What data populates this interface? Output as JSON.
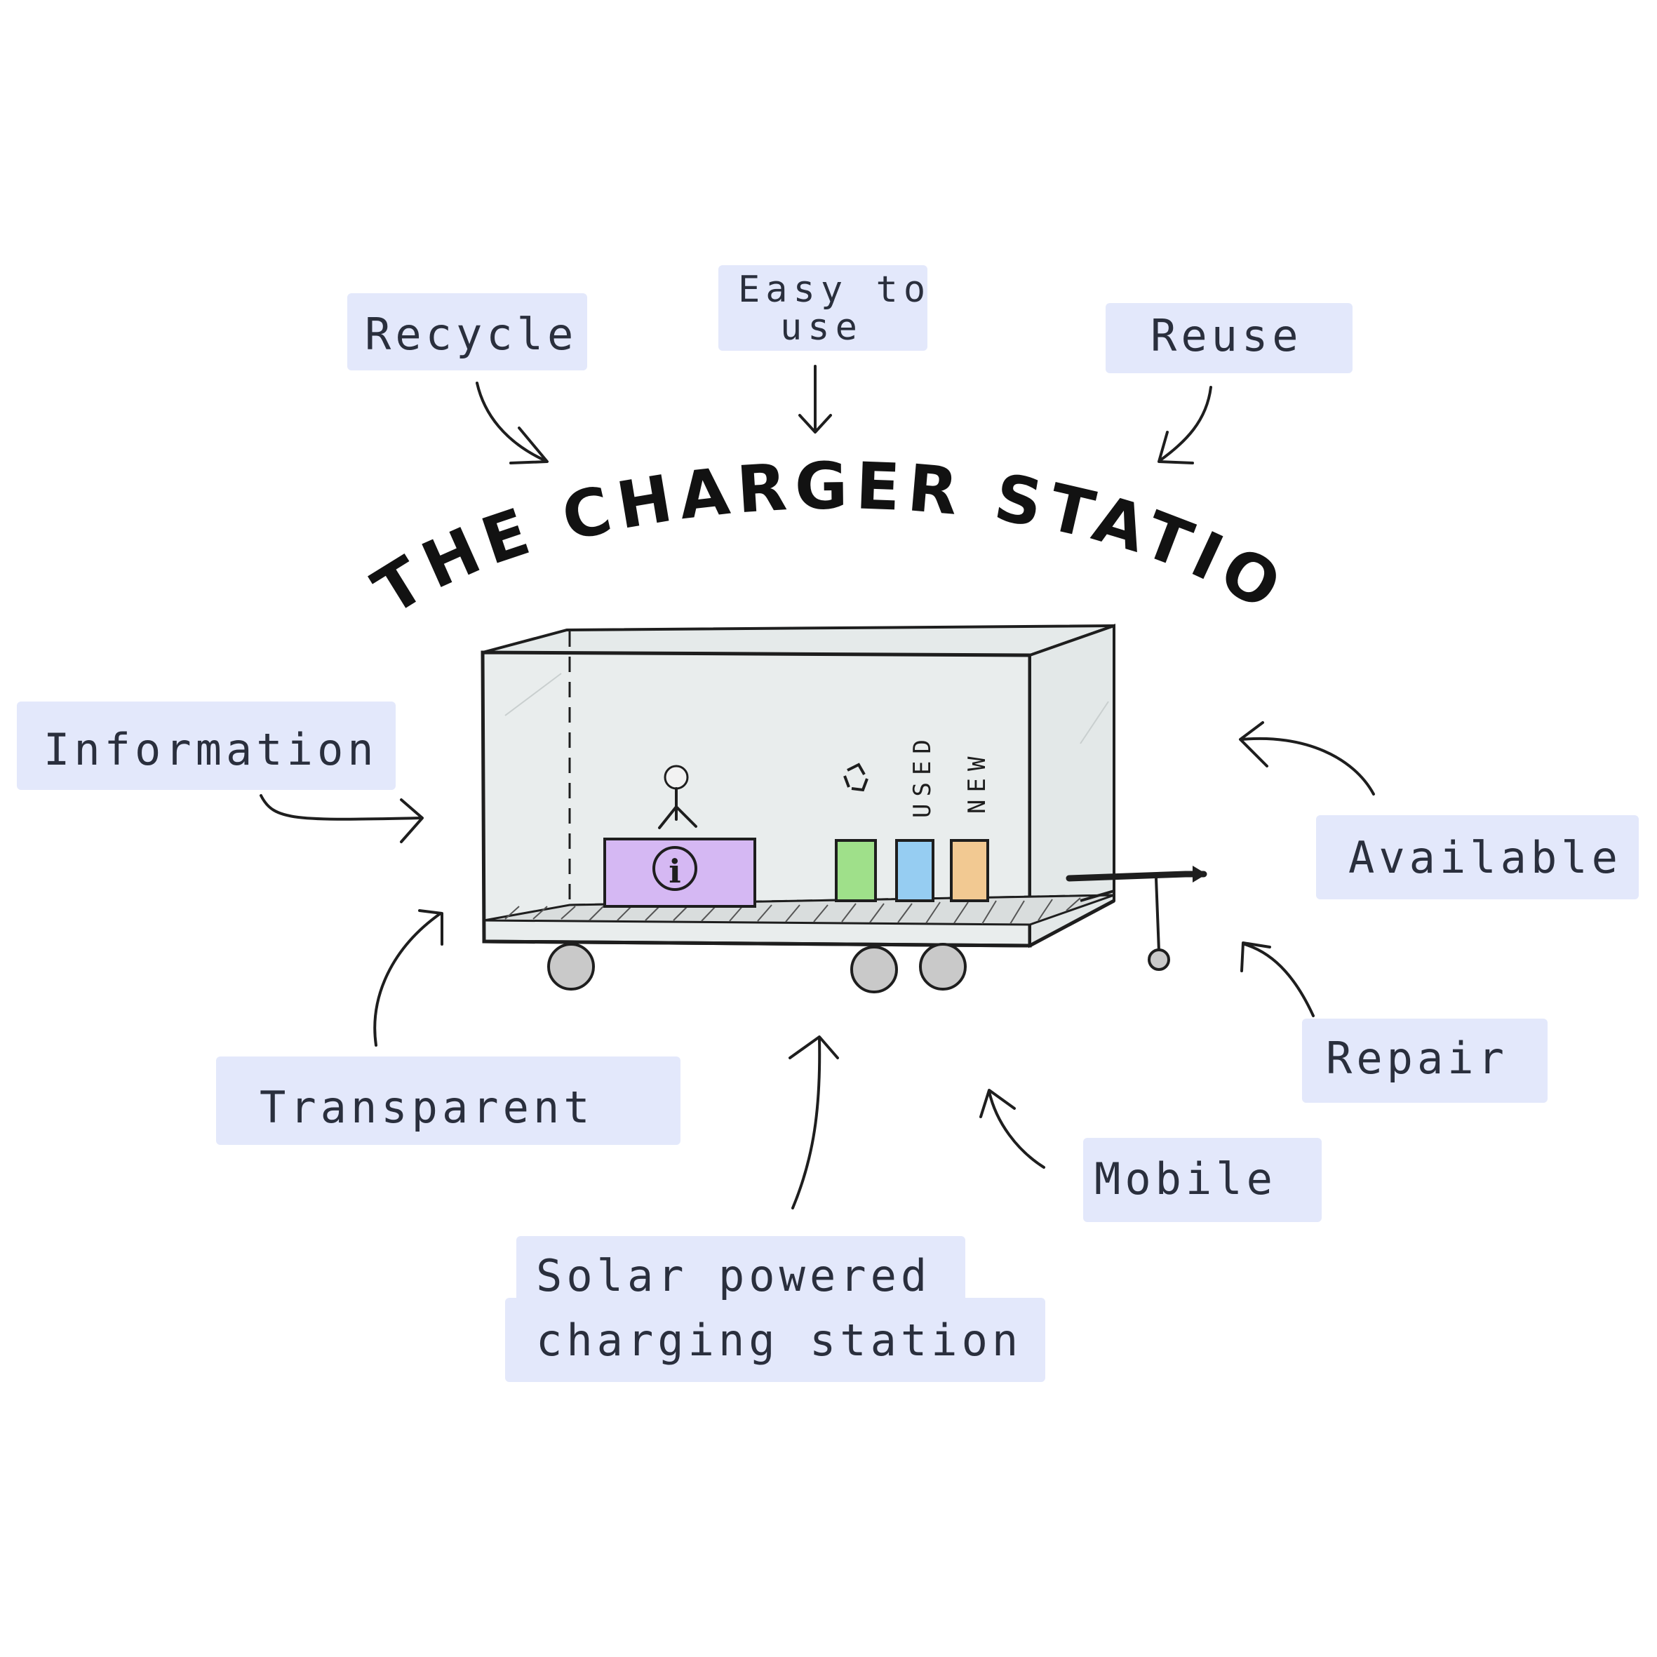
{
  "title": "THE CHARGER STATION",
  "labels": {
    "recycle": "Recycle",
    "easy_line1": "Easy to",
    "easy_line2": "use",
    "reuse": "Reuse",
    "information": "Information",
    "available": "Available",
    "transparent": "Transparent",
    "repair": "Repair",
    "mobile": "Mobile",
    "solar_line1": "Solar powered",
    "solar_line2": "charging station"
  },
  "bin_labels": {
    "used": "USED",
    "new": "NEW"
  },
  "icons": {
    "info": "i",
    "recycle": "recycle-icon"
  },
  "colors": {
    "highlight": "#e3e8fb",
    "desk": "#d5b8f3",
    "bin_green": "#9fe08a",
    "bin_blue": "#96cdf2",
    "bin_orange": "#f2c992",
    "trailer_body": "#e9eded",
    "wheel": "#c9c9c9",
    "ink": "#1e1e1e"
  }
}
